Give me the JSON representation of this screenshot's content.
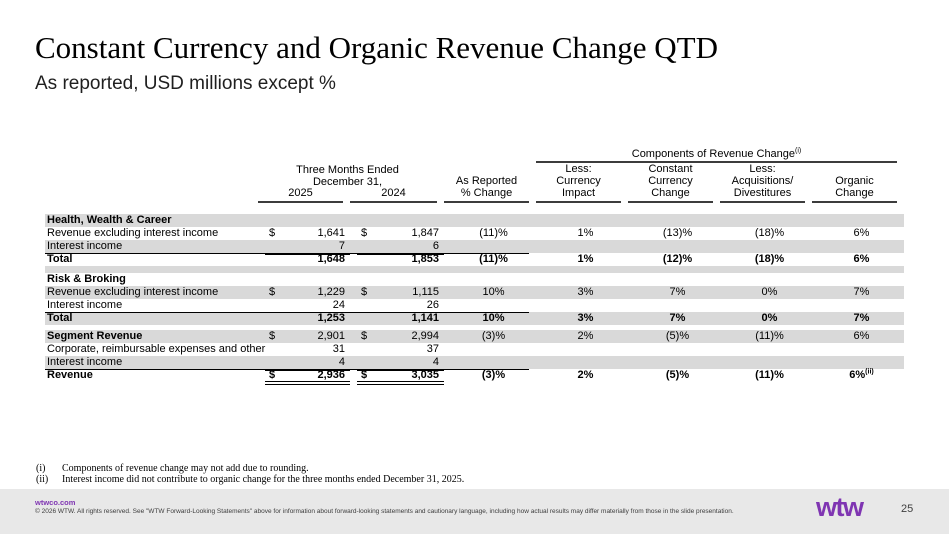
{
  "slide": {
    "title": "Constant Currency and Organic Revenue Change QTD",
    "subtitle": "As reported, USD millions except %"
  },
  "table": {
    "spanner": "Components of Revenue Change",
    "spanner_sup": "(i)",
    "period": [
      "Three Months Ended",
      "December 31,"
    ],
    "year_2025": "2025",
    "year_2024": "2024",
    "cols": {
      "rep": [
        "As Reported",
        "% Change"
      ],
      "cur": [
        "Less:",
        "Currency",
        "Impact"
      ],
      "ccc": [
        "Constant Currency",
        "Change"
      ],
      "acq": [
        "Less:",
        "Acquisitions/",
        "Divestitures"
      ],
      "org": [
        "Organic",
        "Change"
      ]
    },
    "rows": [
      {
        "label": "Health, Wealth & Career"
      },
      {
        "label": "Revenue excluding interest income",
        "d25": "$",
        "v25": "1,641",
        "d24": "$",
        "v24": "1,847",
        "rep": "(11)%",
        "cur": "1%",
        "ccc": "(13)%",
        "acq": "(18)%",
        "org": "6%"
      },
      {
        "label": "Interest income",
        "v25": "7",
        "v24": "6"
      },
      {
        "label": "Total",
        "v25": "1,648",
        "v24": "1,853",
        "rep": "(11)%",
        "cur": "1%",
        "ccc": "(12)%",
        "acq": "(18)%",
        "org": "6%"
      },
      {
        "spacer": "true"
      },
      {
        "label": "Risk & Broking"
      },
      {
        "label": "Revenue excluding interest income",
        "d25": "$",
        "v25": "1,229",
        "d24": "$",
        "v24": "1,115",
        "rep": "10%",
        "cur": "3%",
        "ccc": "7%",
        "acq": "0%",
        "org": "7%"
      },
      {
        "label": "Interest income",
        "v25": "24",
        "v24": "26"
      },
      {
        "label": "Total",
        "v25": "1,253",
        "v24": "1,141",
        "rep": "10%",
        "cur": "3%",
        "ccc": "7%",
        "acq": "0%",
        "org": "7%"
      },
      {
        "spacer": "true"
      },
      {
        "label": "Segment Revenue",
        "d25": "$",
        "v25": "2,901",
        "d24": "$",
        "v24": "2,994",
        "rep": "(3)%",
        "cur": "2%",
        "ccc": "(5)%",
        "acq": "(11)%",
        "org": "6%"
      },
      {
        "label": "Corporate, reimbursable expenses and other",
        "v25": "31",
        "v24": "37"
      },
      {
        "label": "Interest income",
        "v25": "4",
        "v24": "4"
      },
      {
        "label": "Revenue",
        "d25": "$",
        "v25": "2,936",
        "d24": "$",
        "v24": "3,035",
        "rep": "(3)%",
        "cur": "2%",
        "ccc": "(5)%",
        "acq": "(11)%",
        "org": "6%",
        "org_sup": "(ii)"
      }
    ]
  },
  "footnotes": [
    {
      "label": "(i)",
      "text": "Components of revenue change may not add due to rounding."
    },
    {
      "label": "(ii)",
      "text": "Interest income did not contribute to organic change for the three months ended December 31, 2025."
    }
  ],
  "footer": {
    "url": "wtwco.com",
    "copyright": "© 2026 WTW. All rights reserved. See \"WTW Forward-Looking Statements\" above for information about forward-looking statements and cautionary language, including how actual results may differ materially from those in the slide presentation.",
    "logo": "wtw",
    "page": "25"
  }
}
